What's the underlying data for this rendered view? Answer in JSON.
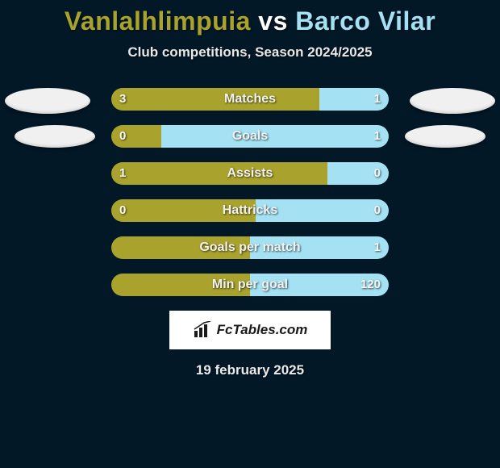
{
  "title": {
    "player1": "Vanlalhlimpuia",
    "vs": "vs",
    "player2": "Barco Vilar"
  },
  "subtitle": "Club competitions, Season 2024/2025",
  "colors": {
    "p1": "#a9a32d",
    "p2": "#a4e2f3",
    "bg": "#021827",
    "track_neutral": "#888888"
  },
  "bar": {
    "track_width": 344,
    "track_height": 28,
    "border_radius": 14
  },
  "stats": [
    {
      "label": "Matches",
      "left_val": "3",
      "right_val": "1",
      "left_pct": 75,
      "right_pct": 25,
      "show_badges": true,
      "badge_side": "both"
    },
    {
      "label": "Goals",
      "left_val": "0",
      "right_val": "1",
      "left_pct": 18,
      "right_pct": 82,
      "show_badges": true,
      "badge_side": "both"
    },
    {
      "label": "Assists",
      "left_val": "1",
      "right_val": "0",
      "left_pct": 78,
      "right_pct": 22,
      "show_badges": false
    },
    {
      "label": "Hattricks",
      "left_val": "0",
      "right_val": "0",
      "left_pct": 52,
      "right_pct": 48,
      "show_badges": false
    },
    {
      "label": "Goals per match",
      "left_val": "",
      "right_val": "1",
      "left_pct": 50,
      "right_pct": 50,
      "show_badges": false
    },
    {
      "label": "Min per goal",
      "left_val": "",
      "right_val": "120",
      "left_pct": 50,
      "right_pct": 50,
      "show_badges": false
    }
  ],
  "watermark": "FcTables.com",
  "date": "19 february 2025"
}
